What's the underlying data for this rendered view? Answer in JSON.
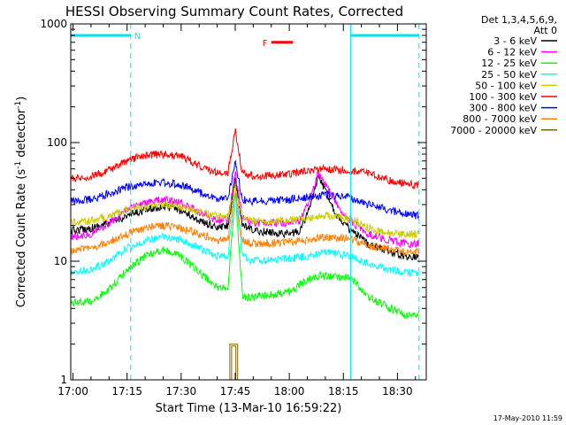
{
  "chart_data": {
    "type": "line",
    "title": "HESSI Observing Summary Count Rates, Corrected",
    "xlabel": "Start Time (13-Mar-10 16:59:22)",
    "ylabel_main": "Corrected Count Rate (s",
    "ylabel_sup1": "-1",
    "ylabel_mid": " detector",
    "ylabel_sup2": "-1",
    "ylabel_end": ")",
    "y_scale": "log",
    "ylim": [
      1,
      1000
    ],
    "xlim": [
      "16:59:22",
      "18:38:00"
    ],
    "x_ticks": [
      "17:00",
      "17:15",
      "17:30",
      "17:45",
      "18:00",
      "18:15",
      "18:30"
    ],
    "y_ticks": [
      "1",
      "10",
      "100",
      "1000"
    ],
    "legend_header": [
      "Det 1,3,4,5,6,9,",
      "Att 0"
    ],
    "legend_position": "right",
    "timestamp": "17-May-2010 11:59",
    "flags": [
      {
        "label": "N",
        "color": "#00e5ee",
        "segments": [
          [
            "16:59:22",
            "17:16:00"
          ],
          [
            "18:17:00",
            "18:36:00"
          ]
        ],
        "level": 800
      },
      {
        "label": "F",
        "color": "#ff0000",
        "segments": [
          [
            "17:55:00",
            "18:01:00"
          ]
        ],
        "level": 700
      }
    ],
    "vlines": [
      {
        "time": "17:16:00",
        "style": "dashed",
        "color": "#00e5ee"
      },
      {
        "time": "18:17:00",
        "style": "solid",
        "color": "#00e5ee"
      },
      {
        "time": "18:36:00",
        "style": "dashed",
        "color": "#00e5ee"
      }
    ],
    "series": [
      {
        "name": "3 - 6 keV",
        "color": "#000000",
        "points": [
          [
            "16:59:22",
            18
          ],
          [
            "17:05",
            19
          ],
          [
            "17:10",
            21
          ],
          [
            "17:15",
            24
          ],
          [
            "17:20",
            27
          ],
          [
            "17:25",
            29
          ],
          [
            "17:30",
            27
          ],
          [
            "17:35",
            22
          ],
          [
            "17:40",
            19
          ],
          [
            "17:43",
            20
          ],
          [
            "17:45",
            48
          ],
          [
            "17:47",
            20
          ],
          [
            "17:50",
            18
          ],
          [
            "18:00",
            17
          ],
          [
            "18:03",
            18
          ],
          [
            "18:06",
            30
          ],
          [
            "18:08",
            52
          ],
          [
            "18:10",
            40
          ],
          [
            "18:13",
            25
          ],
          [
            "18:17",
            18
          ],
          [
            "18:22",
            14
          ],
          [
            "18:28",
            12
          ],
          [
            "18:32",
            11
          ],
          [
            "18:36",
            11
          ]
        ]
      },
      {
        "name": "6 - 12 keV",
        "color": "#ff00ff",
        "points": [
          [
            "16:59:22",
            16
          ],
          [
            "17:05",
            17
          ],
          [
            "17:10",
            21
          ],
          [
            "17:15",
            27
          ],
          [
            "17:20",
            31
          ],
          [
            "17:25",
            33
          ],
          [
            "17:30",
            31
          ],
          [
            "17:35",
            26
          ],
          [
            "17:40",
            22
          ],
          [
            "17:43",
            23
          ],
          [
            "17:45",
            55
          ],
          [
            "17:47",
            23
          ],
          [
            "17:50",
            21
          ],
          [
            "18:00",
            21
          ],
          [
            "18:03",
            22
          ],
          [
            "18:06",
            35
          ],
          [
            "18:08",
            55
          ],
          [
            "18:10",
            45
          ],
          [
            "18:13",
            30
          ],
          [
            "18:17",
            22
          ],
          [
            "18:22",
            17
          ],
          [
            "18:28",
            15
          ],
          [
            "18:32",
            14
          ],
          [
            "18:36",
            14
          ]
        ]
      },
      {
        "name": "12 - 25 keV",
        "color": "#00ff00",
        "points": [
          [
            "16:59:22",
            4.5
          ],
          [
            "17:05",
            4.6
          ],
          [
            "17:10",
            5.8
          ],
          [
            "17:15",
            8.5
          ],
          [
            "17:20",
            11
          ],
          [
            "17:25",
            12.5
          ],
          [
            "17:30",
            11
          ],
          [
            "17:35",
            8
          ],
          [
            "17:40",
            6
          ],
          [
            "17:43",
            6
          ],
          [
            "17:45",
            38
          ],
          [
            "17:47",
            5
          ],
          [
            "17:50",
            5
          ],
          [
            "17:55",
            5.2
          ],
          [
            "18:00",
            5.5
          ],
          [
            "18:05",
            7
          ],
          [
            "18:08",
            7.5
          ],
          [
            "18:12",
            7.5
          ],
          [
            "18:17",
            7.2
          ],
          [
            "18:22",
            5
          ],
          [
            "18:28",
            4
          ],
          [
            "18:32",
            3.5
          ],
          [
            "18:36",
            3.5
          ]
        ]
      },
      {
        "name": "25 - 50 keV",
        "color": "#00ffff",
        "points": [
          [
            "16:59:22",
            8
          ],
          [
            "17:05",
            8.5
          ],
          [
            "17:10",
            10
          ],
          [
            "17:15",
            13
          ],
          [
            "17:20",
            15
          ],
          [
            "17:25",
            16
          ],
          [
            "17:30",
            15
          ],
          [
            "17:35",
            13
          ],
          [
            "17:40",
            11
          ],
          [
            "17:43",
            11
          ],
          [
            "17:45",
            38
          ],
          [
            "17:47",
            11
          ],
          [
            "17:50",
            10
          ],
          [
            "18:00",
            10.5
          ],
          [
            "18:05",
            11
          ],
          [
            "18:10",
            12
          ],
          [
            "18:17",
            11
          ],
          [
            "18:22",
            9.5
          ],
          [
            "18:28",
            8.5
          ],
          [
            "18:32",
            8
          ],
          [
            "18:36",
            8
          ]
        ]
      },
      {
        "name": "50 - 100 keV",
        "color": "#cccc00",
        "points": [
          [
            "16:59:22",
            21
          ],
          [
            "17:05",
            22
          ],
          [
            "17:10",
            24
          ],
          [
            "17:15",
            27
          ],
          [
            "17:20",
            29
          ],
          [
            "17:25",
            30
          ],
          [
            "17:30",
            29
          ],
          [
            "17:35",
            26
          ],
          [
            "17:40",
            24
          ],
          [
            "17:43",
            24
          ],
          [
            "17:45",
            42
          ],
          [
            "17:47",
            23
          ],
          [
            "17:50",
            22
          ],
          [
            "18:00",
            22
          ],
          [
            "18:05",
            23
          ],
          [
            "18:10",
            24
          ],
          [
            "18:17",
            23
          ],
          [
            "18:22",
            19
          ],
          [
            "18:28",
            17
          ],
          [
            "18:32",
            17
          ],
          [
            "18:36",
            17
          ]
        ]
      },
      {
        "name": "100 - 300 keV",
        "color": "#ff0000",
        "points": [
          [
            "16:59:22",
            50
          ],
          [
            "17:05",
            52
          ],
          [
            "17:10",
            58
          ],
          [
            "17:15",
            70
          ],
          [
            "17:20",
            78
          ],
          [
            "17:25",
            80
          ],
          [
            "17:30",
            77
          ],
          [
            "17:35",
            64
          ],
          [
            "17:40",
            55
          ],
          [
            "17:43",
            56
          ],
          [
            "17:45",
            130
          ],
          [
            "17:47",
            55
          ],
          [
            "17:50",
            52
          ],
          [
            "18:00",
            54
          ],
          [
            "18:05",
            58
          ],
          [
            "18:10",
            60
          ],
          [
            "18:17",
            58
          ],
          [
            "18:22",
            55
          ],
          [
            "18:28",
            48
          ],
          [
            "18:32",
            45
          ],
          [
            "18:36",
            44
          ]
        ]
      },
      {
        "name": "300 - 800 keV",
        "color": "#0000ff",
        "points": [
          [
            "16:59:22",
            32
          ],
          [
            "17:05",
            33
          ],
          [
            "17:10",
            37
          ],
          [
            "17:15",
            42
          ],
          [
            "17:20",
            45
          ],
          [
            "17:25",
            46
          ],
          [
            "17:30",
            44
          ],
          [
            "17:35",
            38
          ],
          [
            "17:40",
            34
          ],
          [
            "17:43",
            34
          ],
          [
            "17:45",
            70
          ],
          [
            "17:47",
            33
          ],
          [
            "17:50",
            32
          ],
          [
            "18:00",
            33
          ],
          [
            "18:05",
            35
          ],
          [
            "18:10",
            36
          ],
          [
            "18:17",
            34
          ],
          [
            "18:22",
            30
          ],
          [
            "18:28",
            27
          ],
          [
            "18:32",
            25
          ],
          [
            "18:36",
            24
          ]
        ]
      },
      {
        "name": "800 - 7000 keV",
        "color": "#ff8000",
        "points": [
          [
            "16:59:22",
            12
          ],
          [
            "17:05",
            13
          ],
          [
            "17:10",
            14.5
          ],
          [
            "17:15",
            17
          ],
          [
            "17:20",
            19
          ],
          [
            "17:25",
            20
          ],
          [
            "17:30",
            19
          ],
          [
            "17:35",
            17
          ],
          [
            "17:40",
            15
          ],
          [
            "17:43",
            15
          ],
          [
            "17:45",
            40
          ],
          [
            "17:47",
            15
          ],
          [
            "17:50",
            14
          ],
          [
            "18:00",
            14.5
          ],
          [
            "18:05",
            15
          ],
          [
            "18:10",
            16
          ],
          [
            "18:17",
            15.5
          ],
          [
            "18:22",
            13.5
          ],
          [
            "18:28",
            12.5
          ],
          [
            "18:32",
            12
          ],
          [
            "18:36",
            12
          ]
        ]
      },
      {
        "name": "7000 - 20000 keV",
        "color": "#806000",
        "points": [
          [
            "17:43:30",
            1
          ],
          [
            "17:43:30",
            2
          ],
          [
            "17:45:40",
            2
          ],
          [
            "17:45:40",
            1
          ]
        ]
      }
    ]
  }
}
